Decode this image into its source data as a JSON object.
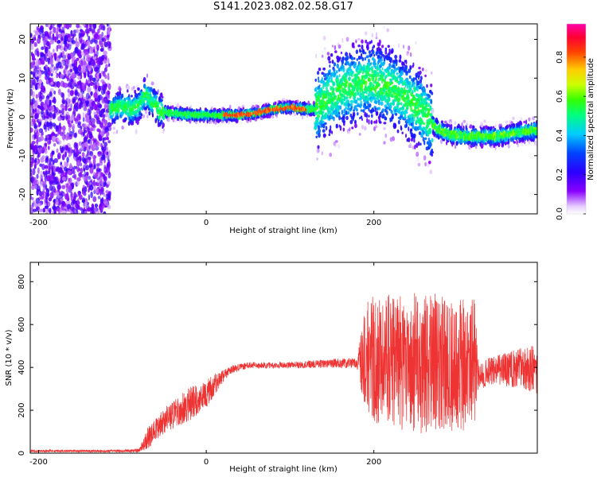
{
  "title": "S141.2023.082.02.58.G17",
  "colors": {
    "snr_line": "#ee3333",
    "frame": "#000000"
  },
  "chart_data": [
    {
      "type": "heatmap",
      "xlabel": "Height of straight line (km)",
      "ylabel": "Frequency (Hz)",
      "xlim": [
        -210,
        395
      ],
      "ylim": [
        -25,
        24
      ],
      "xticks": [
        -200,
        0,
        200
      ],
      "yticks": [
        -20,
        -10,
        0,
        10,
        20
      ],
      "tick_labels_x": [
        "-200",
        "0",
        "200"
      ],
      "tick_labels_y": [
        "-20",
        "-10",
        "0",
        "10",
        "20"
      ],
      "colorbar": {
        "label": "Normalized spectral amplitude",
        "range": [
          0,
          0.97
        ],
        "ticks": [
          "0.0",
          "0.2",
          "0.4",
          "0.6",
          "0.8"
        ],
        "colormap": "rainbow (violet → blue → cyan → green → yellow → red → magenta)"
      },
      "features": {
        "noise_region_height_km": [
          -210,
          -115
        ],
        "ridge_center_hz": [
          [
            -112,
            2
          ],
          [
            -100,
            3
          ],
          [
            -90,
            2
          ],
          [
            -80,
            3
          ],
          [
            -72,
            6
          ],
          [
            -65,
            4
          ],
          [
            -55,
            1.5
          ],
          [
            -40,
            1
          ],
          [
            -20,
            0.5
          ],
          [
            0,
            0.5
          ],
          [
            20,
            0.5
          ],
          [
            40,
            0.5
          ],
          [
            60,
            1
          ],
          [
            80,
            2
          ],
          [
            100,
            2.5
          ],
          [
            120,
            2
          ],
          [
            130,
            2
          ],
          [
            145,
            5
          ],
          [
            160,
            7
          ],
          [
            175,
            8
          ],
          [
            190,
            9
          ],
          [
            200,
            9
          ],
          [
            215,
            8
          ],
          [
            230,
            6
          ],
          [
            245,
            4
          ],
          [
            260,
            1
          ],
          [
            275,
            -3
          ],
          [
            290,
            -4.5
          ],
          [
            310,
            -5
          ],
          [
            330,
            -5
          ],
          [
            350,
            -5
          ],
          [
            370,
            -4
          ],
          [
            395,
            -3.5
          ]
        ],
        "peak_amplitude_height_km": [
          20,
          120
        ]
      }
    },
    {
      "type": "line",
      "xlabel": "Height of straight line (km)",
      "ylabel": "SNR (10 * v/v)",
      "xlim": [
        -210,
        395
      ],
      "ylim": [
        0,
        890
      ],
      "xticks": [
        -200,
        0,
        200
      ],
      "yticks": [
        0,
        200,
        400,
        600,
        800
      ],
      "tick_labels_x": [
        "-200",
        "0",
        "200"
      ],
      "tick_labels_y": [
        "0",
        "200",
        "400",
        "600",
        "800"
      ],
      "series_envelope": {
        "x": [
          -210,
          -150,
          -100,
          -80,
          -70,
          -50,
          -20,
          0,
          20,
          30,
          50,
          100,
          150,
          180,
          190,
          200,
          250,
          300,
          320,
          325,
          340,
          360,
          380,
          395
        ],
        "mean": [
          10,
          10,
          10,
          12,
          70,
          150,
          230,
          280,
          360,
          390,
          410,
          410,
          420,
          420,
          440,
          440,
          420,
          420,
          420,
          360,
          380,
          390,
          400,
          380
        ],
        "amp": [
          5,
          6,
          6,
          10,
          50,
          60,
          80,
          70,
          30,
          20,
          15,
          15,
          20,
          25,
          260,
          300,
          330,
          320,
          310,
          60,
          70,
          80,
          100,
          120
        ]
      }
    }
  ]
}
